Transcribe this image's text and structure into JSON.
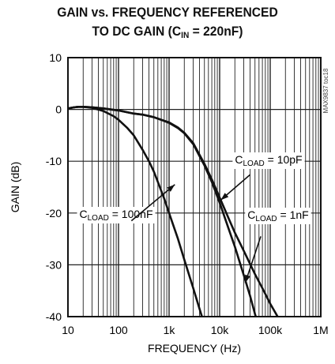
{
  "title": {
    "line1": "GAIN vs. FREQUENCY REFERENCED",
    "line2_prefix": "TO DC GAIN (C",
    "line2_sub": "IN",
    "line2_suffix": " = 220nF)"
  },
  "watermark": "MAX9837 toc18",
  "chart_data": {
    "type": "line",
    "xscale": "log",
    "xlim": [
      10,
      1000000
    ],
    "ylim": [
      -40,
      10
    ],
    "xlabel": "FREQUENCY (Hz)",
    "ylabel": "GAIN (dB)",
    "x_ticks": [
      {
        "value": 10,
        "label": "10"
      },
      {
        "value": 100,
        "label": "100"
      },
      {
        "value": 1000,
        "label": "1k"
      },
      {
        "value": 10000,
        "label": "10k"
      },
      {
        "value": 100000,
        "label": "100k"
      },
      {
        "value": 1000000,
        "label": "1M"
      }
    ],
    "y_ticks": [
      10,
      0,
      -10,
      -20,
      -30,
      -40
    ],
    "grid": true,
    "series": [
      {
        "name": "CLOAD = 100nF",
        "label_main": "C",
        "label_sub": "LOAD",
        "label_value": " = 100nF",
        "x": [
          10,
          13,
          16,
          20,
          30,
          50,
          80,
          100,
          150,
          200,
          300,
          400,
          500,
          600,
          800,
          1000,
          1500,
          2000,
          3000,
          4000,
          5000
        ],
        "y": [
          0.2,
          0.4,
          0.5,
          0.5,
          0.3,
          -0.3,
          -1.3,
          -2.0,
          -3.6,
          -5.0,
          -7.8,
          -10.0,
          -12.0,
          -14.0,
          -17.2,
          -20.0,
          -25.0,
          -29.0,
          -34.5,
          -38.5,
          -41.5
        ]
      },
      {
        "name": "CLOAD = 10pF",
        "label_main": "C",
        "label_sub": "LOAD",
        "label_value": " = 10pF",
        "x": [
          10,
          13,
          16,
          20,
          30,
          50,
          100,
          200,
          300,
          500,
          700,
          1000,
          1500,
          2000,
          3000,
          5000,
          7000,
          10000,
          15000,
          20000,
          30000,
          50000,
          70000,
          100000,
          150000,
          200000
        ],
        "y": [
          0.2,
          0.4,
          0.5,
          0.5,
          0.4,
          0.2,
          -0.2,
          -0.8,
          -1.0,
          -1.5,
          -2.0,
          -2.5,
          -3.5,
          -4.5,
          -6.5,
          -10.5,
          -13.5,
          -17.0,
          -21.0,
          -23.8,
          -27.3,
          -31.8,
          -34.5,
          -37.5,
          -40.5,
          -43.0
        ]
      },
      {
        "name": "CLOAD = 1nF",
        "label_main": "C",
        "label_sub": "LOAD",
        "label_value": " = 1nF",
        "x": [
          10,
          13,
          16,
          20,
          30,
          50,
          100,
          200,
          300,
          500,
          700,
          1000,
          1500,
          2000,
          3000,
          5000,
          7000,
          10000,
          15000,
          20000,
          30000,
          40000,
          50000,
          60000
        ],
        "y": [
          0.2,
          0.4,
          0.5,
          0.5,
          0.4,
          0.2,
          -0.2,
          -0.8,
          -1.0,
          -1.5,
          -2.0,
          -2.6,
          -3.6,
          -4.6,
          -6.7,
          -10.8,
          -14.0,
          -18.0,
          -23.0,
          -26.5,
          -32.0,
          -36.0,
          -39.5,
          -42.0
        ]
      }
    ],
    "annotations": [
      {
        "series": 0,
        "from": [
          180,
          -21.5
        ],
        "to": [
          1300,
          -14.5
        ]
      },
      {
        "series": 1,
        "from": [
          40000,
          -12.6
        ],
        "to": [
          10500,
          -17.5
        ]
      },
      {
        "series": 2,
        "from": [
          65000,
          -24.5
        ],
        "to": [
          32000,
          -33.5
        ]
      }
    ]
  }
}
